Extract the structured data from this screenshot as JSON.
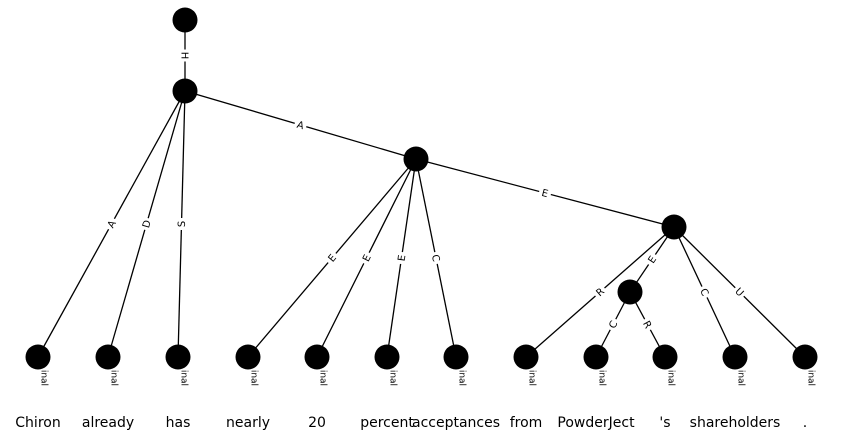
{
  "tree": {
    "edge_labels": [
      "H",
      "A",
      "E",
      "A",
      "D",
      "S",
      "E",
      "E",
      "E",
      "C",
      "R",
      "E",
      "C",
      "U",
      "C",
      "R"
    ],
    "terminal_label": "Terminal",
    "words": [
      "Chiron",
      "already",
      "has",
      "nearly",
      "20",
      "percent",
      "acceptances",
      "from",
      "PowderJect",
      "'s",
      "shareholders",
      "."
    ]
  }
}
